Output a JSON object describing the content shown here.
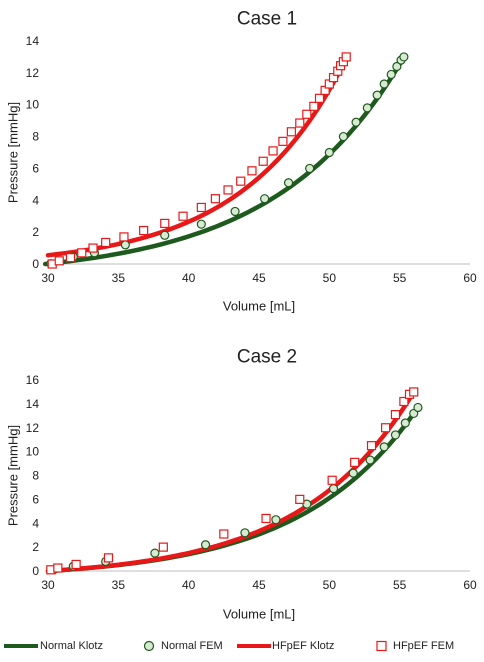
{
  "legend": [
    {
      "name": "Normal Klotz",
      "kind": "line",
      "color": "#1e5a1e"
    },
    {
      "name": "Normal FEM",
      "kind": "marker-circle",
      "color": "#1e5a1e",
      "fill": "#d9ead3"
    },
    {
      "name": "HFpEF Klotz",
      "kind": "line",
      "color": "#e81818"
    },
    {
      "name": "HFpEF FEM",
      "kind": "marker-square",
      "color": "#e81818",
      "fill": "#ffffff"
    }
  ],
  "chart_data": [
    {
      "type": "scatter",
      "title": "Case 1",
      "xlabel": "Volume [mL]",
      "ylabel": "Pressure [mmHg]",
      "xlim": [
        30,
        60
      ],
      "ylim": [
        0,
        14
      ],
      "xticks": [
        30,
        35,
        40,
        45,
        50,
        55,
        60
      ],
      "yticks": [
        0,
        2,
        4,
        6,
        8,
        10,
        12,
        14
      ],
      "grid": false,
      "legend_position": "bottom",
      "klotz": [
        {
          "name": "Normal Klotz",
          "color": "#1e5a1e",
          "v0": 29.8,
          "v_end": 55.3,
          "p_end": 13.0,
          "beta": 0.11
        },
        {
          "name": "HFpEF Klotz",
          "color": "#e81818",
          "v0": 30.0,
          "v_end": 51.3,
          "p_end": 13.1,
          "p_start": 0.55,
          "beta": 0.137
        }
      ],
      "series": [
        {
          "name": "Normal FEM",
          "marker": "circle",
          "color": "#1e5a1e",
          "fill": "#d9ead3",
          "points": [
            [
              30.2,
              0.02
            ],
            [
              31.8,
              0.45
            ],
            [
              33.3,
              0.7
            ],
            [
              35.5,
              1.2
            ],
            [
              38.3,
              1.8
            ],
            [
              40.9,
              2.5
            ],
            [
              43.3,
              3.3
            ],
            [
              45.4,
              4.1
            ],
            [
              47.1,
              5.1
            ],
            [
              48.6,
              6.0
            ],
            [
              50.0,
              7.0
            ],
            [
              51.0,
              8.0
            ],
            [
              51.9,
              8.9
            ],
            [
              52.7,
              9.8
            ],
            [
              53.4,
              10.6
            ],
            [
              53.9,
              11.3
            ],
            [
              54.4,
              11.9
            ],
            [
              54.8,
              12.4
            ],
            [
              55.1,
              12.8
            ],
            [
              55.3,
              13.0
            ]
          ]
        },
        {
          "name": "HFpEF FEM",
          "marker": "square",
          "color": "#e81818",
          "fill": "#ffffff",
          "points": [
            [
              30.3,
              0.0
            ],
            [
              30.8,
              0.2
            ],
            [
              31.6,
              0.4
            ],
            [
              32.4,
              0.7
            ],
            [
              33.2,
              1.0
            ],
            [
              34.1,
              1.35
            ],
            [
              35.4,
              1.7
            ],
            [
              36.8,
              2.1
            ],
            [
              38.3,
              2.55
            ],
            [
              39.6,
              3.0
            ],
            [
              40.9,
              3.55
            ],
            [
              41.9,
              4.1
            ],
            [
              42.8,
              4.65
            ],
            [
              43.7,
              5.2
            ],
            [
              44.5,
              5.85
            ],
            [
              45.3,
              6.45
            ],
            [
              46.0,
              7.1
            ],
            [
              46.7,
              7.7
            ],
            [
              47.3,
              8.3
            ],
            [
              47.9,
              8.85
            ],
            [
              48.4,
              9.4
            ],
            [
              48.9,
              9.9
            ],
            [
              49.3,
              10.4
            ],
            [
              49.7,
              10.9
            ],
            [
              50.0,
              11.3
            ],
            [
              50.3,
              11.7
            ],
            [
              50.6,
              12.1
            ],
            [
              50.8,
              12.45
            ],
            [
              51.0,
              12.7
            ],
            [
              51.2,
              13.0
            ]
          ]
        }
      ]
    },
    {
      "type": "scatter",
      "title": "Case 2",
      "xlabel": "Volume [mL]",
      "ylabel": "Pressure [mmHg]",
      "xlim": [
        30,
        60
      ],
      "ylim": [
        0,
        16
      ],
      "xticks": [
        30,
        35,
        40,
        45,
        50,
        55,
        60
      ],
      "yticks": [
        0,
        2,
        4,
        6,
        8,
        10,
        12,
        14,
        16
      ],
      "grid": false,
      "legend_position": "bottom",
      "klotz": [
        {
          "name": "Normal Klotz",
          "color": "#1e5a1e",
          "v0": 30.0,
          "v_end": 56.3,
          "p_end": 13.7,
          "beta": 0.12
        },
        {
          "name": "HFpEF Klotz",
          "color": "#e81818",
          "v0": 30.0,
          "v_end": 56.0,
          "p_end": 15.0,
          "beta": 0.125
        }
      ],
      "series": [
        {
          "name": "Normal FEM",
          "marker": "circle",
          "color": "#1e5a1e",
          "fill": "#d9ead3",
          "points": [
            [
              30.4,
              0.1
            ],
            [
              31.8,
              0.4
            ],
            [
              34.1,
              0.8
            ],
            [
              37.6,
              1.5
            ],
            [
              41.2,
              2.2
            ],
            [
              44.0,
              3.2
            ],
            [
              46.2,
              4.3
            ],
            [
              48.4,
              5.6
            ],
            [
              50.3,
              6.9
            ],
            [
              51.7,
              8.2
            ],
            [
              52.9,
              9.3
            ],
            [
              53.9,
              10.4
            ],
            [
              54.7,
              11.4
            ],
            [
              55.4,
              12.4
            ],
            [
              56.0,
              13.2
            ],
            [
              56.3,
              13.7
            ]
          ]
        },
        {
          "name": "HFpEF FEM",
          "marker": "square",
          "color": "#e81818",
          "fill": "#ffffff",
          "points": [
            [
              30.2,
              0.1
            ],
            [
              30.7,
              0.25
            ],
            [
              32.0,
              0.55
            ],
            [
              34.3,
              1.1
            ],
            [
              38.2,
              2.0
            ],
            [
              42.5,
              3.1
            ],
            [
              45.5,
              4.4
            ],
            [
              47.9,
              6.0
            ],
            [
              50.2,
              7.6
            ],
            [
              51.8,
              9.1
            ],
            [
              53.0,
              10.5
            ],
            [
              54.0,
              12.0
            ],
            [
              54.7,
              13.1
            ],
            [
              55.3,
              14.2
            ],
            [
              55.7,
              14.8
            ],
            [
              56.0,
              15.0
            ]
          ]
        }
      ]
    }
  ]
}
